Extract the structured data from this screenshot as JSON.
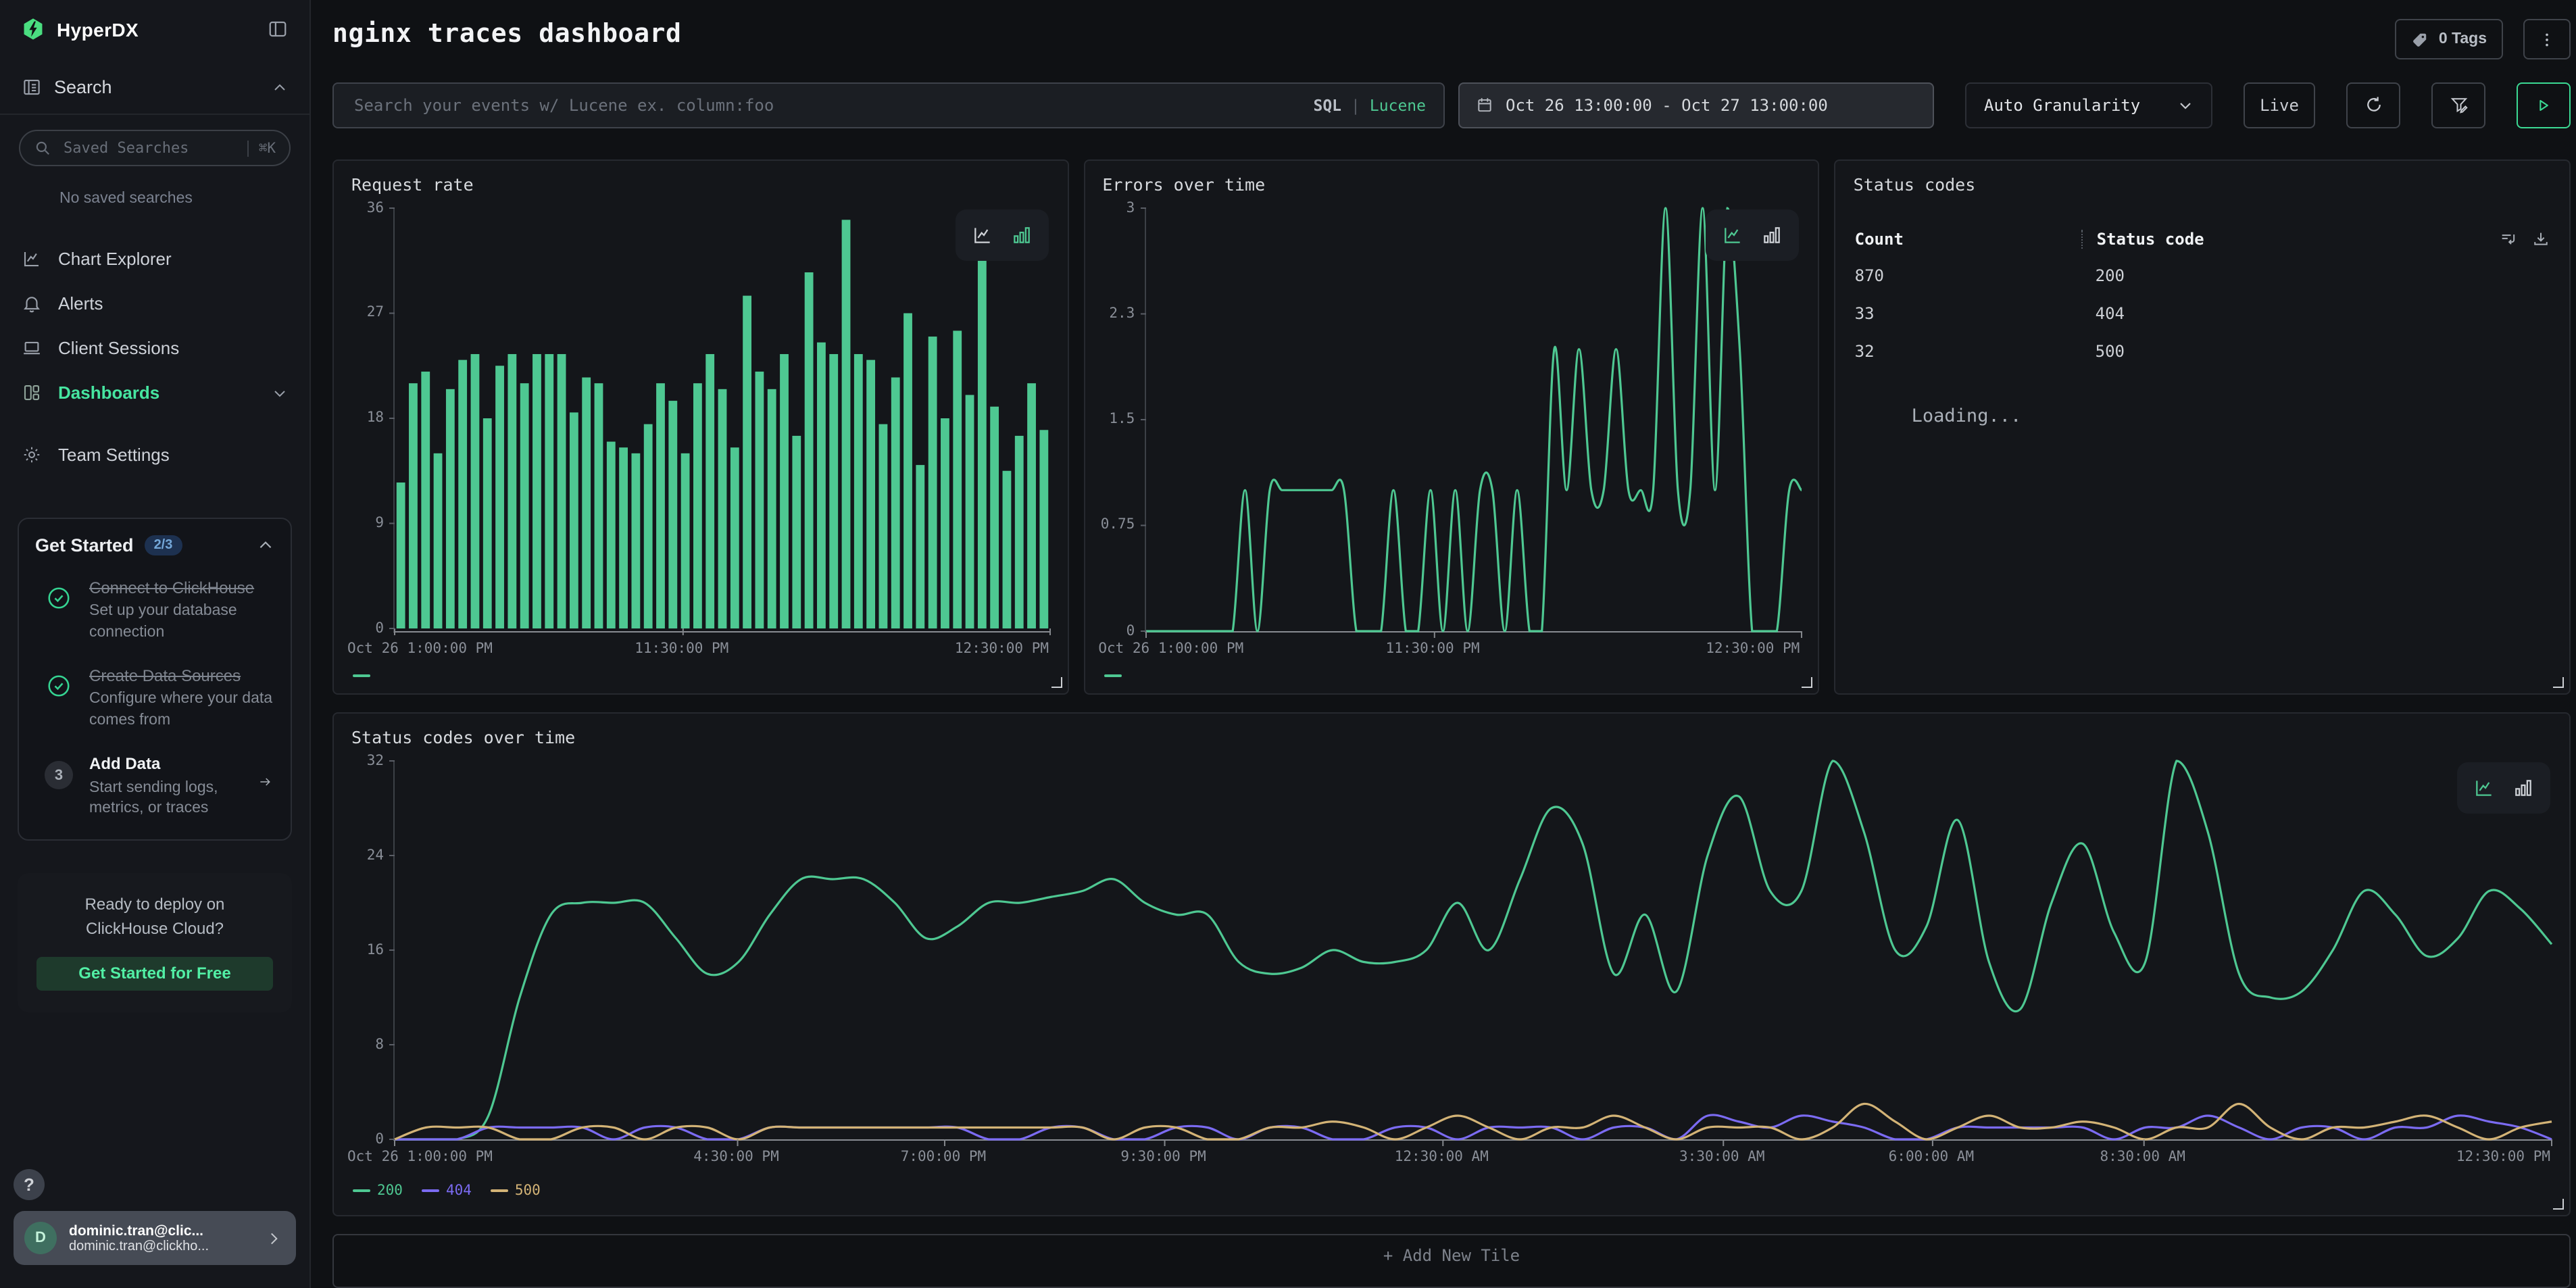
{
  "app": {
    "brand": "HyperDX"
  },
  "sidebar": {
    "search_header": "Search",
    "saved_search_placeholder": "Saved Searches",
    "saved_search_kbd": "⌘K",
    "no_saved": "No saved searches",
    "items": [
      {
        "label": "Chart Explorer"
      },
      {
        "label": "Alerts"
      },
      {
        "label": "Client Sessions"
      },
      {
        "label": "Dashboards",
        "active": true
      },
      {
        "label": "Team Settings"
      }
    ],
    "get_started": {
      "title": "Get Started",
      "badge": "2/3",
      "steps": [
        {
          "title": "Connect to ClickHouse",
          "desc": "Set up your database connection",
          "done": true
        },
        {
          "title": "Create Data Sources",
          "desc": "Configure where your data comes from",
          "done": true
        },
        {
          "title": "Add Data",
          "desc": "Start sending logs, metrics, or traces",
          "num": "3"
        }
      ]
    },
    "deploy": {
      "line1": "Ready to deploy on",
      "line2": "ClickHouse Cloud?",
      "cta": "Get Started for Free"
    },
    "help": "?",
    "user": {
      "initial": "D",
      "name": "dominic.tran@clic...",
      "email": "dominic.tran@clickho..."
    }
  },
  "header": {
    "title": "nginx traces dashboard",
    "tags": "0 Tags",
    "search_placeholder": "Search your events w/ Lucene ex. column:foo",
    "sql": "SQL",
    "lang_sep": "|",
    "lucene": "Lucene",
    "date_range": "Oct 26 13:00:00 - Oct 27 13:00:00",
    "granularity": "Auto Granularity",
    "live": "Live"
  },
  "footer": {
    "add_tile": "+ Add New Tile"
  },
  "colors": {
    "accent_green": "#4ec892",
    "bright_green": "#46e5a0",
    "purple": "#7b6bf2",
    "tan": "#d3b376",
    "badge_blue_bg": "#1d3150",
    "badge_blue_text": "#74a7d8"
  },
  "chart_data": [
    {
      "type": "bar",
      "title": "Request rate",
      "active_view": "bar",
      "color": "#4ec892",
      "ylim": [
        0,
        36
      ],
      "yticks": [
        36,
        27,
        18,
        9,
        0
      ],
      "xticks": [
        {
          "label": "Oct 26 1:00:00 PM",
          "pos": 0
        },
        {
          "label": "11:30:00 PM",
          "pos": 0.44
        },
        {
          "label": "12:30:00 PM",
          "pos": 1
        }
      ],
      "values": [
        12.5,
        21,
        22,
        15,
        20.5,
        23,
        23.5,
        18,
        22.5,
        23.5,
        21,
        23.5,
        23.5,
        23.5,
        18.5,
        21.5,
        21,
        16,
        15.5,
        15,
        17.5,
        21,
        19.5,
        15,
        21,
        23.5,
        20.5,
        15.5,
        28.5,
        22,
        20.5,
        23.5,
        16.5,
        30.5,
        24.5,
        23.5,
        35,
        23.5,
        23,
        17.5,
        21.5,
        27,
        14,
        25,
        18,
        25.5,
        20,
        34.5,
        19,
        13.5,
        16.5,
        21,
        17
      ],
      "legend": [
        {
          "label": "",
          "color": "#4ec892"
        }
      ]
    },
    {
      "type": "line",
      "title": "Errors over time",
      "active_view": "line",
      "color": "#4ec892",
      "ylim": [
        0,
        3
      ],
      "yticks": [
        3,
        2.3,
        1.5,
        0.75,
        0
      ],
      "xticks": [
        {
          "label": "Oct 26 1:00:00 PM",
          "pos": 0
        },
        {
          "label": "11:30:00 PM",
          "pos": 0.44
        },
        {
          "label": "12:30:00 PM",
          "pos": 1
        }
      ],
      "values": [
        0,
        0,
        0,
        0,
        0,
        0,
        0,
        0,
        1,
        0,
        1,
        1,
        1,
        1,
        1,
        1,
        1,
        0,
        0,
        0,
        1,
        0,
        0,
        1,
        0,
        1,
        0,
        1,
        1,
        0,
        1,
        0,
        0,
        2,
        1,
        2,
        1,
        1,
        2,
        1,
        1,
        1,
        3,
        1,
        1,
        3,
        1,
        3,
        2,
        0,
        0,
        0,
        1,
        1
      ],
      "legend": [
        {
          "label": "",
          "color": "#4ec892"
        }
      ]
    },
    {
      "type": "table",
      "title": "Status codes",
      "columns": [
        "Count",
        "Status code"
      ],
      "rows": [
        [
          "870",
          "200"
        ],
        [
          "33",
          "404"
        ],
        [
          "32",
          "500"
        ]
      ],
      "status": "Loading..."
    },
    {
      "type": "line",
      "title": "Status codes over time",
      "active_view": "line",
      "ylim": [
        0,
        32
      ],
      "yticks": [
        32,
        24,
        16,
        8,
        0
      ],
      "xticks": [
        {
          "label": "Oct 26 1:00:00 PM",
          "pos": 0
        },
        {
          "label": "4:30:00 PM",
          "pos": 0.159
        },
        {
          "label": "7:00:00 PM",
          "pos": 0.255
        },
        {
          "label": "9:30:00 PM",
          "pos": 0.357
        },
        {
          "label": "12:30:00 AM",
          "pos": 0.486
        },
        {
          "label": "3:30:00 AM",
          "pos": 0.616
        },
        {
          "label": "6:00:00 AM",
          "pos": 0.713
        },
        {
          "label": "8:30:00 AM",
          "pos": 0.811
        },
        {
          "label": "12:30:00 PM",
          "pos": 1
        }
      ],
      "series": [
        {
          "name": "200",
          "color": "#4ec892",
          "values": [
            0,
            0,
            0,
            2,
            12,
            19,
            20,
            20,
            20,
            17,
            14,
            15,
            19,
            22,
            22,
            22,
            20,
            17,
            18,
            20,
            20,
            20.5,
            21,
            22,
            20,
            19,
            19,
            15,
            14,
            14.5,
            16,
            15,
            15,
            16,
            20,
            16,
            22,
            28,
            25,
            14,
            19,
            12.5,
            24,
            29,
            21,
            21,
            32,
            26,
            16,
            18,
            27,
            15,
            11,
            20,
            25,
            17.5,
            15,
            32,
            26,
            14,
            12,
            12.5,
            16,
            21,
            19,
            15.5,
            17,
            21,
            19.5,
            16.5
          ]
        },
        {
          "name": "404",
          "color": "#7b6bf2",
          "values": [
            0,
            0,
            0,
            1,
            1,
            1,
            1,
            0,
            1,
            1,
            0,
            0,
            1,
            1,
            1,
            1,
            1,
            1,
            1,
            0,
            0,
            1,
            1,
            0,
            0,
            1,
            1,
            0,
            1,
            1,
            0,
            0,
            1,
            1,
            0,
            1,
            1,
            1,
            0,
            1,
            1,
            0,
            2,
            1.5,
            1,
            2,
            1.5,
            1,
            0,
            0,
            1,
            1,
            1,
            1,
            1,
            0,
            1,
            1,
            2,
            1,
            0,
            1,
            1,
            0,
            1,
            1,
            2,
            1.5,
            1,
            0
          ]
        },
        {
          "name": "500",
          "color": "#d3b376",
          "values": [
            0,
            1,
            1,
            1,
            0,
            0,
            1,
            1,
            0,
            1,
            1,
            0,
            1,
            1,
            1,
            1,
            1,
            1,
            1,
            1,
            1,
            1,
            1,
            0,
            1,
            1,
            0,
            0,
            1,
            1,
            1.5,
            1,
            0,
            1,
            2,
            1,
            0,
            1,
            1,
            2,
            1,
            0,
            1,
            1,
            1,
            0,
            1,
            3,
            1.5,
            0,
            1,
            2,
            1,
            1,
            1.5,
            1,
            0,
            1,
            1,
            3,
            1,
            0,
            1,
            1,
            1.5,
            2,
            1,
            0,
            1,
            1.5
          ]
        }
      ],
      "legend": [
        {
          "label": "200",
          "color": "#4ec892"
        },
        {
          "label": "404",
          "color": "#7b6bf2"
        },
        {
          "label": "500",
          "color": "#d3b376"
        }
      ]
    }
  ]
}
